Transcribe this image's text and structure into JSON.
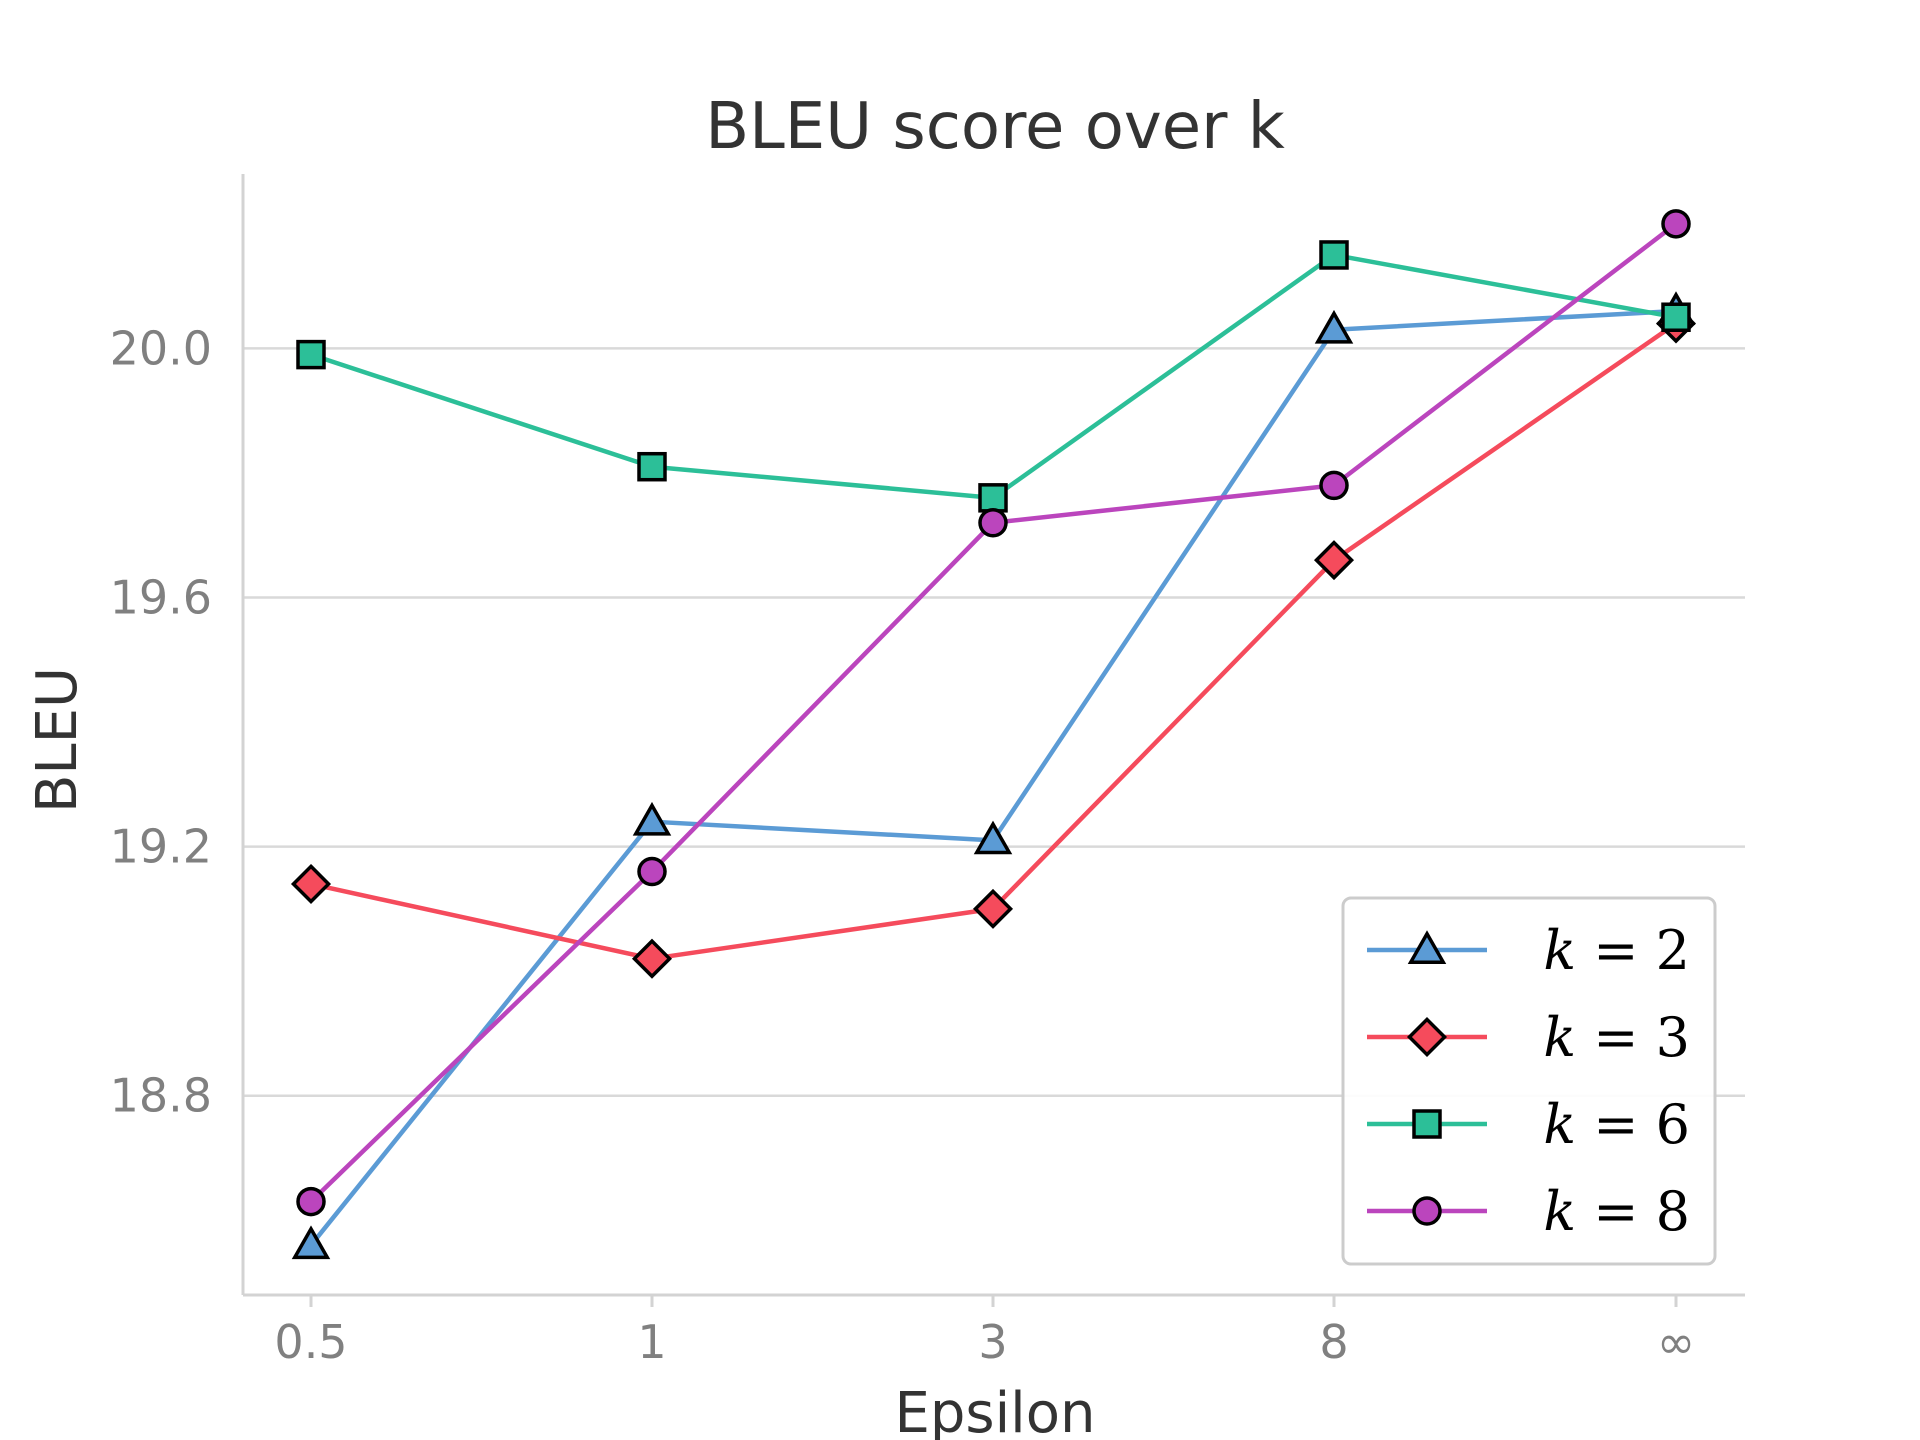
{
  "chart_data": {
    "type": "line",
    "title": "BLEU score over k",
    "xlabel": "Epsilon",
    "ylabel": "BLEU",
    "categories": [
      "0.5",
      "1",
      "3",
      "8",
      "∞"
    ],
    "ylim": [
      18.48,
      20.28
    ],
    "yticks": [
      "18.8",
      "19.2",
      "19.6",
      "20.0"
    ],
    "ytick_values": [
      18.8,
      19.2,
      19.6,
      20.0
    ],
    "grid": "horizontal",
    "legend_position": "lower-right",
    "series": [
      {
        "name": "k = 2",
        "legend_var": "k",
        "legend_val": "2",
        "color": "#5b9bd5",
        "marker": "triangle",
        "values": [
          18.56,
          19.24,
          19.21,
          20.03,
          20.06
        ]
      },
      {
        "name": "k = 3",
        "legend_var": "k",
        "legend_val": "3",
        "color": "#f54b5c",
        "marker": "diamond",
        "values": [
          19.14,
          19.02,
          19.1,
          19.66,
          20.04
        ]
      },
      {
        "name": "k = 6",
        "legend_var": "k",
        "legend_val": "6",
        "color": "#2cbf98",
        "marker": "square",
        "values": [
          19.99,
          19.81,
          19.76,
          20.15,
          20.05
        ]
      },
      {
        "name": "k = 8",
        "legend_var": "k",
        "legend_val": "8",
        "color": "#bb45bd",
        "marker": "circle",
        "values": [
          18.63,
          19.16,
          19.72,
          19.78,
          20.2
        ]
      }
    ]
  }
}
